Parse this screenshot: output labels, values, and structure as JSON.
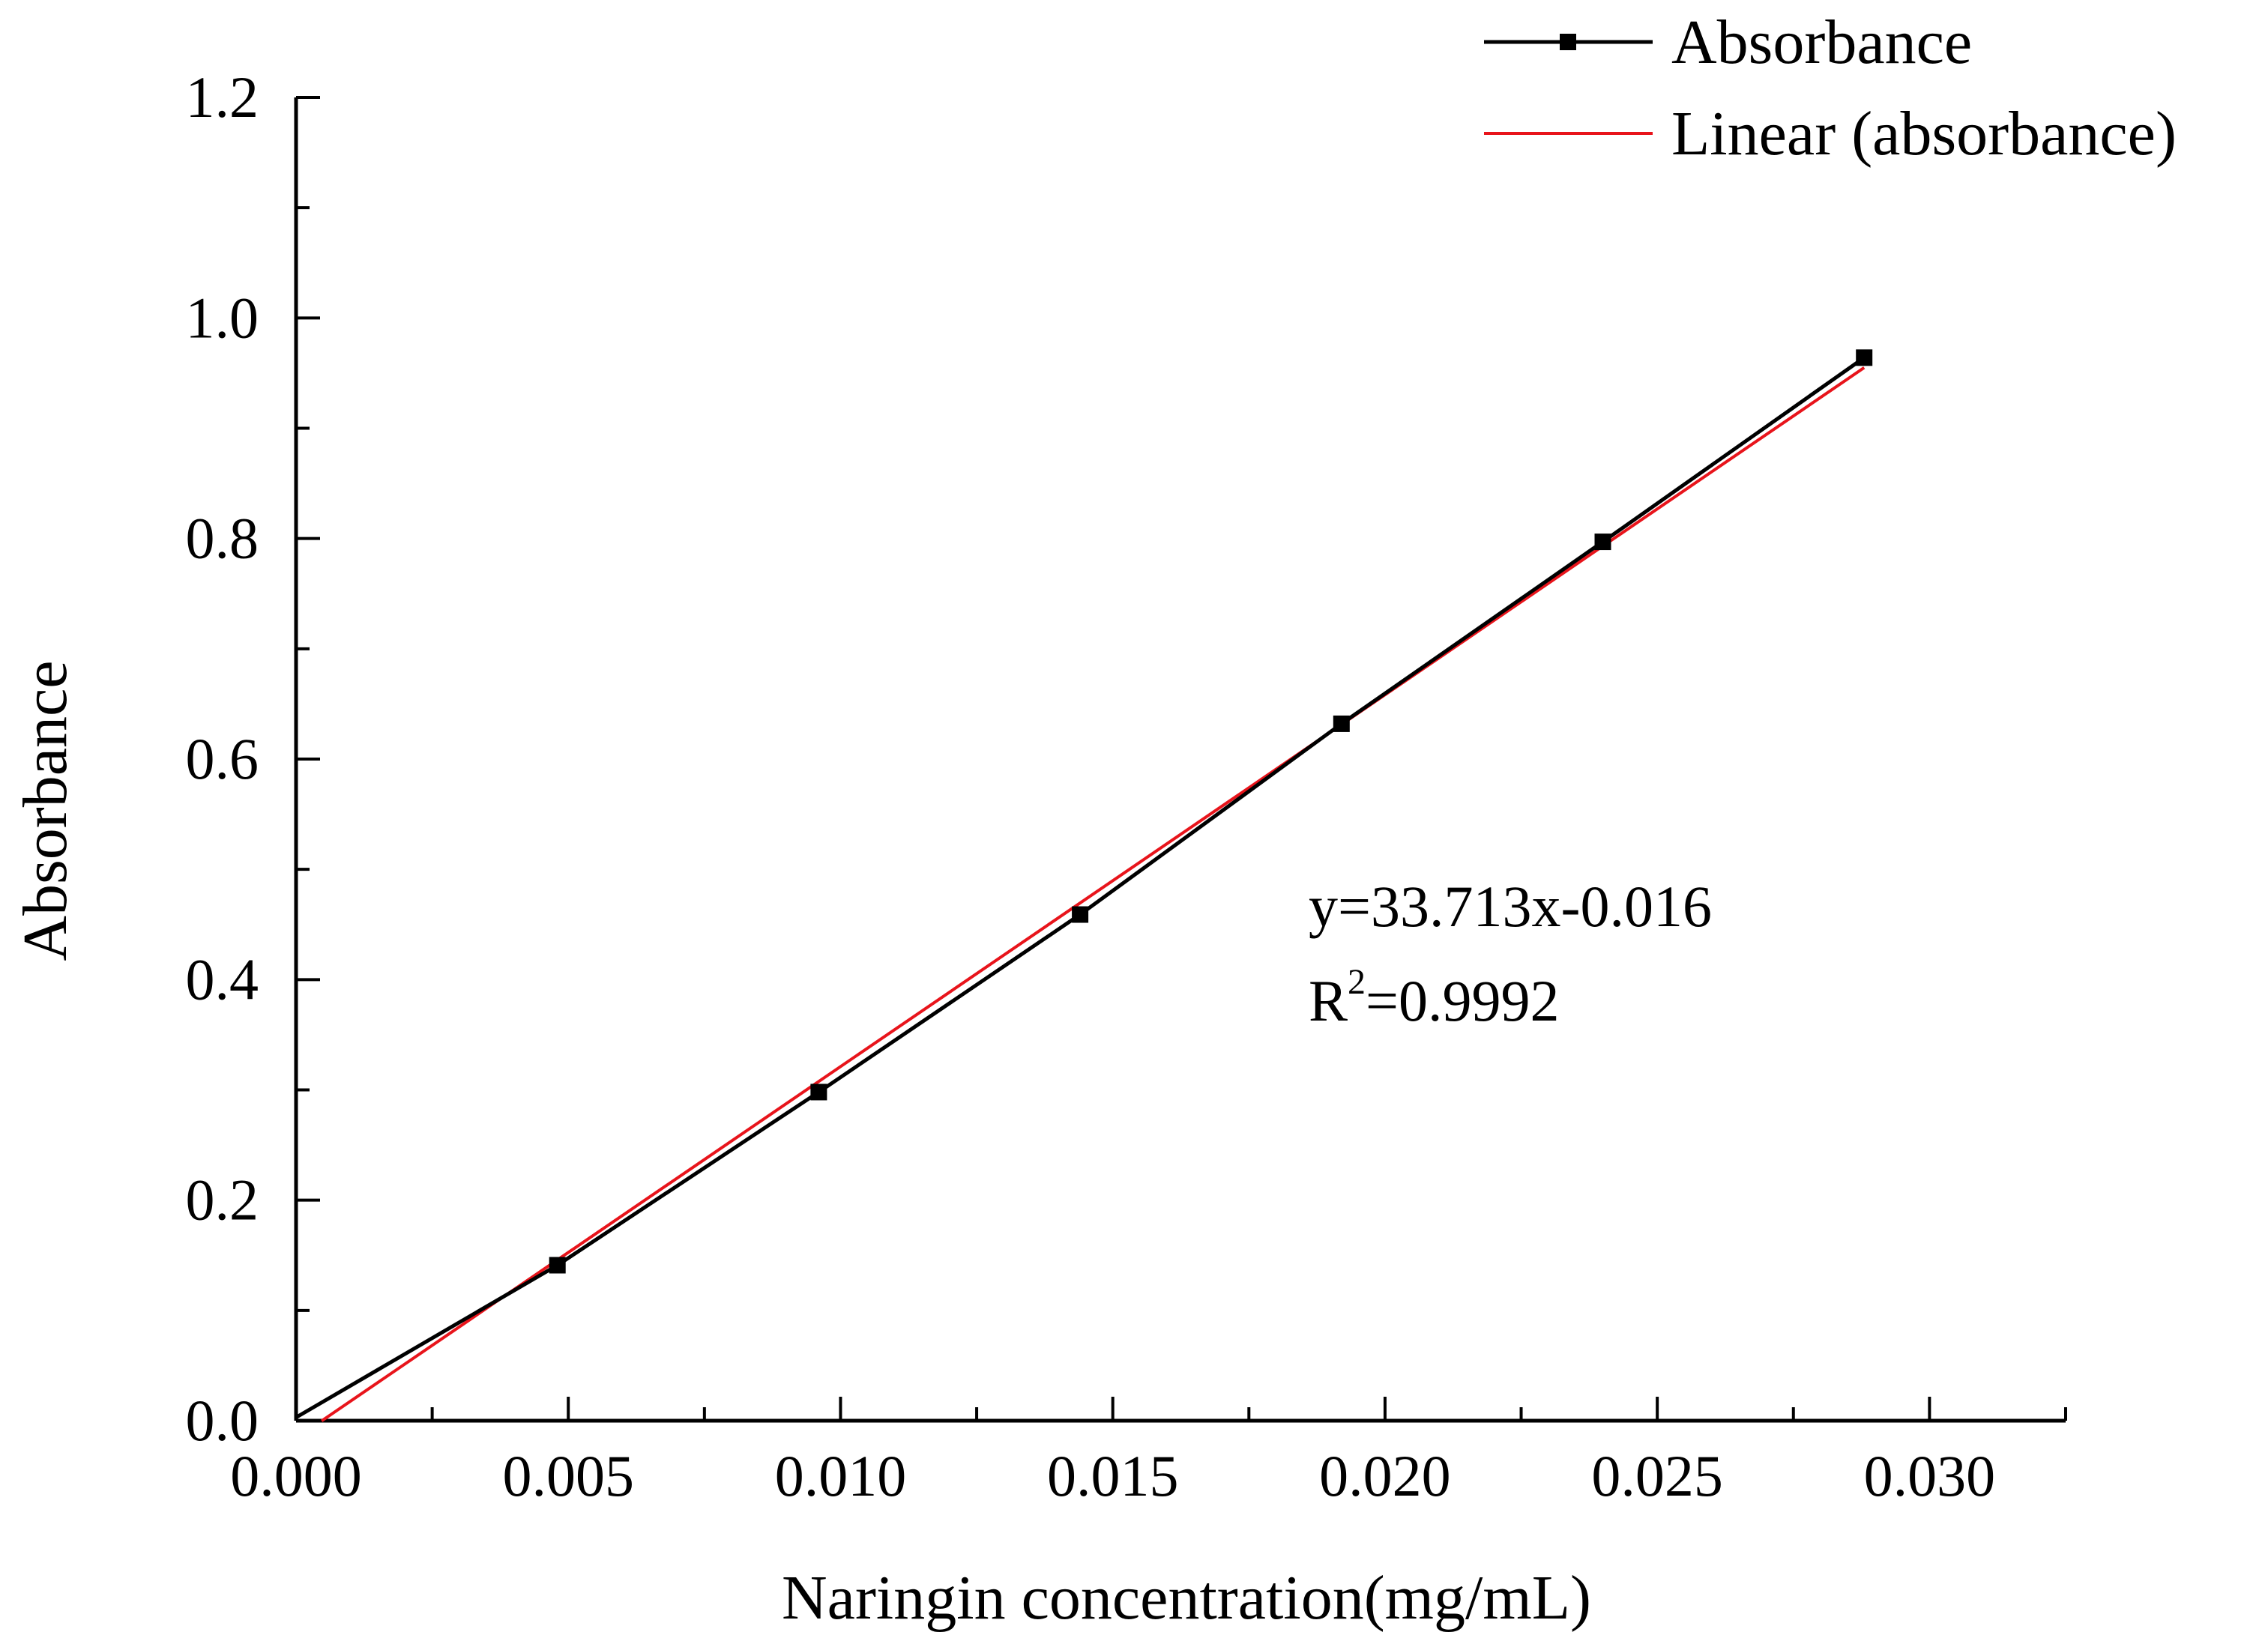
{
  "chart_data": {
    "type": "line",
    "title": "",
    "xlabel": "Naringin concentration(mg/mL)",
    "ylabel": "Absorbance",
    "xlim": [
      0.0,
      0.0325
    ],
    "ylim": [
      0.0,
      1.2
    ],
    "x_ticks": [
      0.0,
      0.005,
      0.01,
      0.015,
      0.02,
      0.025,
      0.03
    ],
    "x_tick_labels": [
      "0.000",
      "0.005",
      "0.010",
      "0.015",
      "0.020",
      "0.025",
      "0.030"
    ],
    "y_ticks": [
      0.0,
      0.2,
      0.4,
      0.6,
      0.8,
      1.0,
      1.2
    ],
    "y_tick_labels": [
      "0.0",
      "0.2",
      "0.4",
      "0.6",
      "0.8",
      "1.0",
      "1.2"
    ],
    "x_minor_step": 0.0025,
    "y_minor_step": 0.1,
    "grid": false,
    "legend_position": "top-right",
    "series": [
      {
        "name": "Absorbance",
        "kind": "line+marker",
        "color": "#000000",
        "x": [
          0.0,
          0.0048,
          0.0096,
          0.0144,
          0.0192,
          0.024,
          0.0288
        ],
        "y": [
          0.003,
          0.141,
          0.298,
          0.459,
          0.632,
          0.797,
          0.964
        ]
      },
      {
        "name": "Linear (absorbance)",
        "kind": "fit",
        "color": "#e8141b",
        "slope": 33.713,
        "intercept": -0.016,
        "x_range": [
          0.00047,
          0.0288
        ]
      }
    ],
    "annotations": {
      "equation": "y=33.713x-0.016",
      "r2_prefix": "R",
      "r2_sup": "2",
      "r2_value": "=0.9992"
    }
  }
}
